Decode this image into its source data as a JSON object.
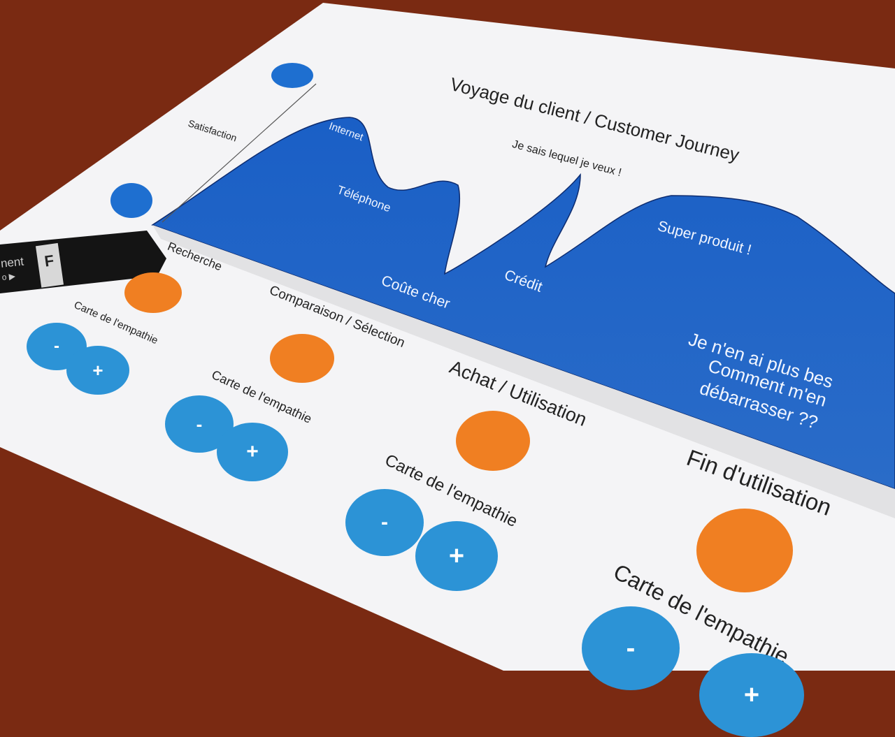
{
  "colors": {
    "table": "#7a2a12",
    "paper": "#f4f4f6",
    "chart_blue": "#1f5fc4",
    "sticker_blue": "#2c93d6",
    "sticker_orange": "#f07f22",
    "strip": "#e2e2e4"
  },
  "sheet": {
    "title": "Voyage du client / Customer Journey",
    "y_axis_label": "Satisfaction",
    "icons": [
      "happy-face-icon",
      "sad-face-icon"
    ],
    "annotations": [
      "Internet",
      "Téléphone",
      "Coûte cher",
      "Je sais lequel je veux !",
      "Crédit",
      "Super produit !",
      "Je n'en ai plus bes",
      "Comment m'en",
      "débarrasser ??"
    ],
    "phases": [
      "Recherche",
      "Comparaison / Sélection",
      "Achat / Utilisation",
      "Fin d'utilisation"
    ],
    "empathy_label": "Carte de l'empathie",
    "minus": "-",
    "plus": "+"
  },
  "marker": {
    "text": "nent",
    "sub": "o ▶",
    "cap_letter": "F"
  }
}
